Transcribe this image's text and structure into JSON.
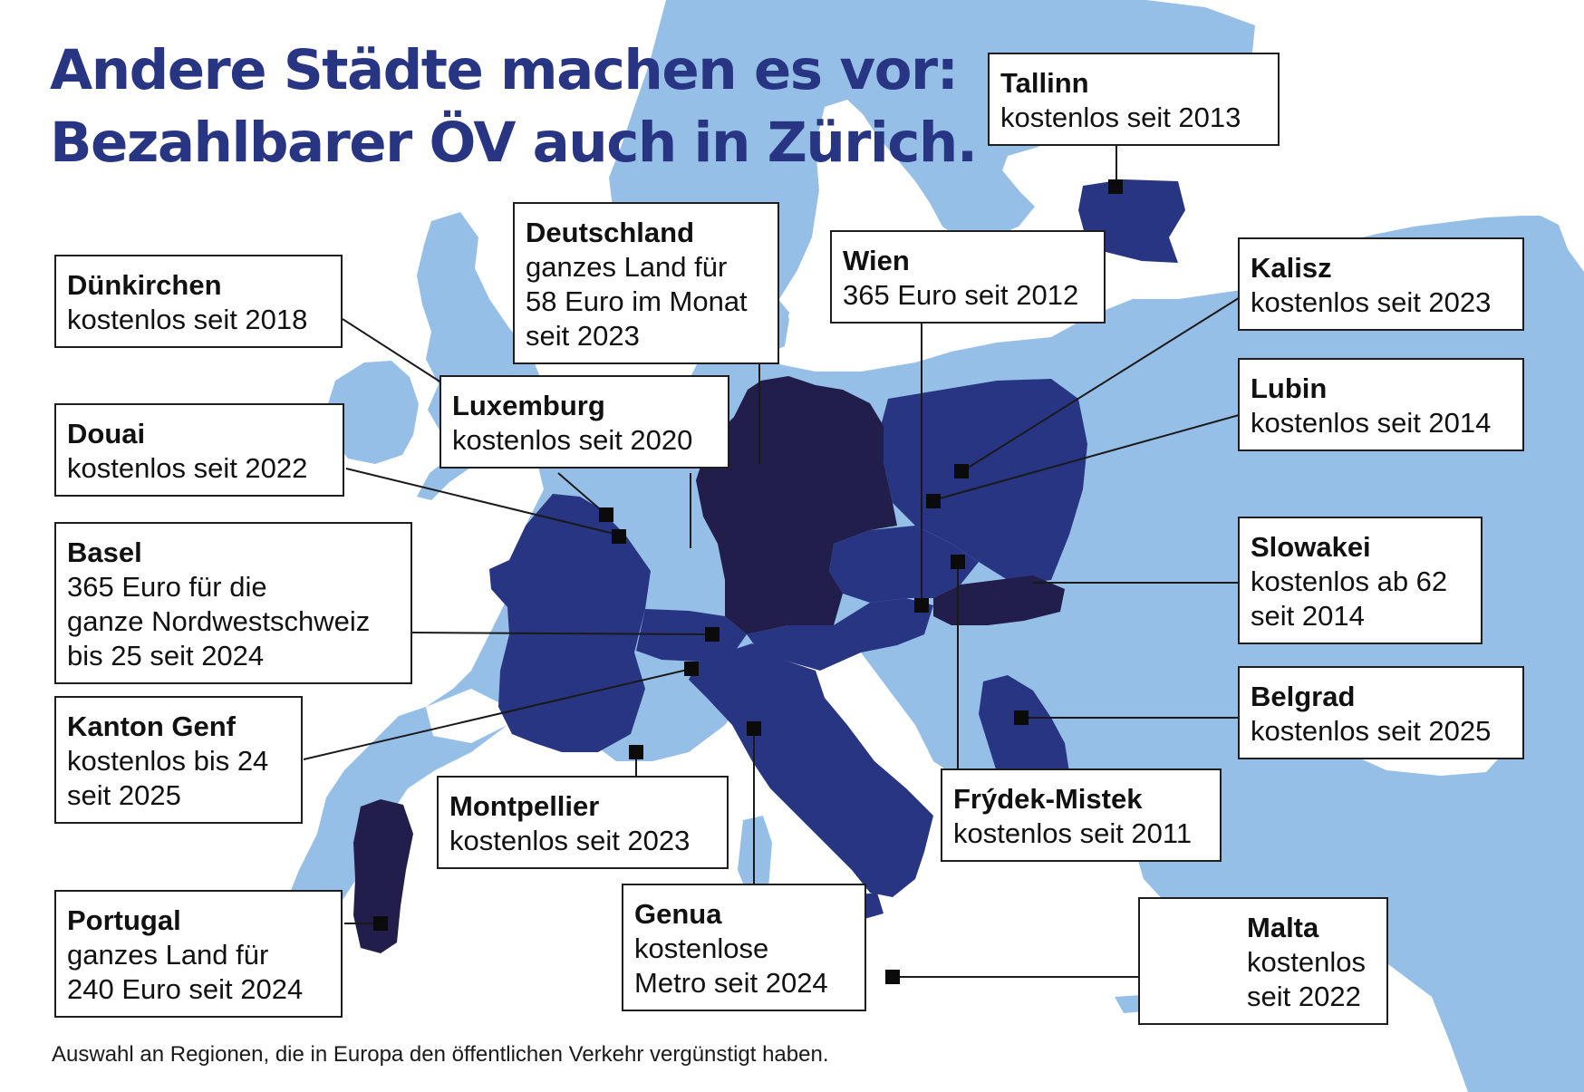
{
  "title": {
    "line1": "Andere Städte machen es vor:",
    "line2": "Bezahlbarer ÖV auch in Zürich."
  },
  "map": {
    "colors": {
      "sea": "#ffffff",
      "land": "#96bfe7",
      "highlight_country": "#283583",
      "highlight_city_country": "#283583",
      "whole_country_offer": "#211e4b",
      "marker": "#0b0b0b"
    },
    "highlighted_countries": [
      "Frankreich",
      "Italien",
      "Schweiz",
      "Österreich",
      "Polen",
      "Tschechien",
      "Estland",
      "Serbien"
    ],
    "whole_country_offers": [
      "Deutschland",
      "Portugal",
      "Slowakei"
    ]
  },
  "labels": [
    {
      "id": "tallinn",
      "name": "Tallinn",
      "text": "kostenlos seit 2013"
    },
    {
      "id": "deutschland",
      "name": "Deutschland",
      "text": "ganzes Land für\n58 Euro im Monat\nseit 2023"
    },
    {
      "id": "wien",
      "name": "Wien",
      "text": "365 Euro seit 2012"
    },
    {
      "id": "kalisz",
      "name": "Kalisz",
      "text": "kostenlos seit 2023"
    },
    {
      "id": "duenkirchen",
      "name": "Dünkirchen",
      "text": "kostenlos seit 2018"
    },
    {
      "id": "luxemburg",
      "name": "Luxemburg",
      "text": "kostenlos seit 2020"
    },
    {
      "id": "lubin",
      "name": "Lubin",
      "text": "kostenlos seit 2014"
    },
    {
      "id": "douai",
      "name": "Douai",
      "text": "kostenlos seit 2022"
    },
    {
      "id": "basel",
      "name": "Basel",
      "text": "365 Euro für die\nganze Nordwestschweiz\nbis 25 seit 2024"
    },
    {
      "id": "slowakei",
      "name": "Slowakei",
      "text": "kostenlos ab 62\nseit 2014"
    },
    {
      "id": "kanton-genf",
      "name": "Kanton Genf",
      "text": "kostenlos bis 24\nseit 2025"
    },
    {
      "id": "belgrad",
      "name": "Belgrad",
      "text": "kostenlos seit 2025"
    },
    {
      "id": "montpellier",
      "name": "Montpellier",
      "text": "kostenlos seit 2023"
    },
    {
      "id": "frydek-mistek",
      "name": "Frýdek-Mistek",
      "text": "kostenlos seit 2011"
    },
    {
      "id": "genua",
      "name": "Genua",
      "text": "kostenlose\nMetro seit 2024"
    },
    {
      "id": "portugal",
      "name": "Portugal",
      "text": "ganzes Land für\n240 Euro seit 2024"
    },
    {
      "id": "malta",
      "name": "Malta",
      "text": "kostenlos\nseit 2022"
    }
  ],
  "footnote": "Auswahl an Regionen, die in Europa den öffentlichen Verkehr vergünstigt haben."
}
